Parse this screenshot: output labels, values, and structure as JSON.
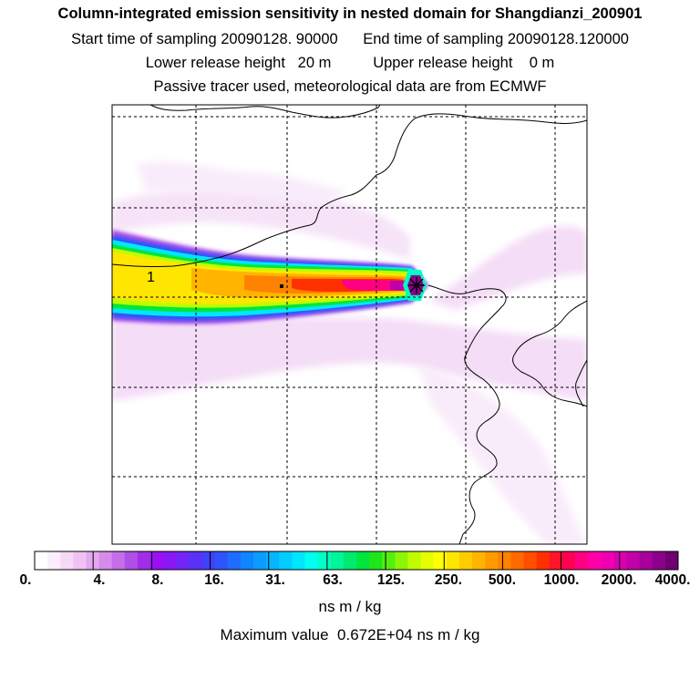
{
  "chart_data": {
    "type": "heatmap",
    "title": "Column-integrated emission sensitivity in nested domain for Shangdianzi_200901",
    "subtitle_lines": [
      {
        "left": "Start time of sampling 20090128. 90000",
        "right": "End time of sampling 20090128.120000"
      },
      {
        "left": "Lower release height   20 m",
        "right": "Upper release height    0 m"
      },
      {
        "text": "Passive tracer used, meteorological data are from ECMWF"
      }
    ],
    "colorbar": {
      "tick_labels": [
        "0.",
        "4.",
        "8.",
        "16.",
        "31.",
        "63.",
        "125.",
        "250.",
        "500.",
        "1000.",
        "2000.",
        "4000."
      ],
      "units": "ns m / kg",
      "colors": [
        "#ffffff",
        "#fbeefb",
        "#f5d9f7",
        "#eec3f3",
        "#e4a8ef",
        "#d68bea",
        "#c46ee8",
        "#b04ee6",
        "#a22de8",
        "#9b10f0",
        "#8a18f5",
        "#7325f7",
        "#5a31f7",
        "#4240f8",
        "#2e55fb",
        "#1f6dfd",
        "#1185ff",
        "#0a9dff",
        "#06b5ff",
        "#03cdff",
        "#00e6ff",
        "#00ffee",
        "#00ffc4",
        "#00f59a",
        "#00ea70",
        "#00e63c",
        "#1ee61a",
        "#55ee10",
        "#8cf508",
        "#bffc00",
        "#e6ff00",
        "#ffff00",
        "#ffe600",
        "#ffcc00",
        "#ffb400",
        "#ff9b00",
        "#ff8200",
        "#ff6a00",
        "#ff4e00",
        "#ff3000",
        "#ff1428",
        "#ff0055",
        "#ff0082",
        "#ff00a8",
        "#f000b4",
        "#d800b0",
        "#c000a8",
        "#a8009c",
        "#8c008c",
        "#6e0070"
      ]
    },
    "receptor_label": "1",
    "max_value_text": "Maximum value  0.672E+04 ns m / kg",
    "max_value": 6720
  }
}
